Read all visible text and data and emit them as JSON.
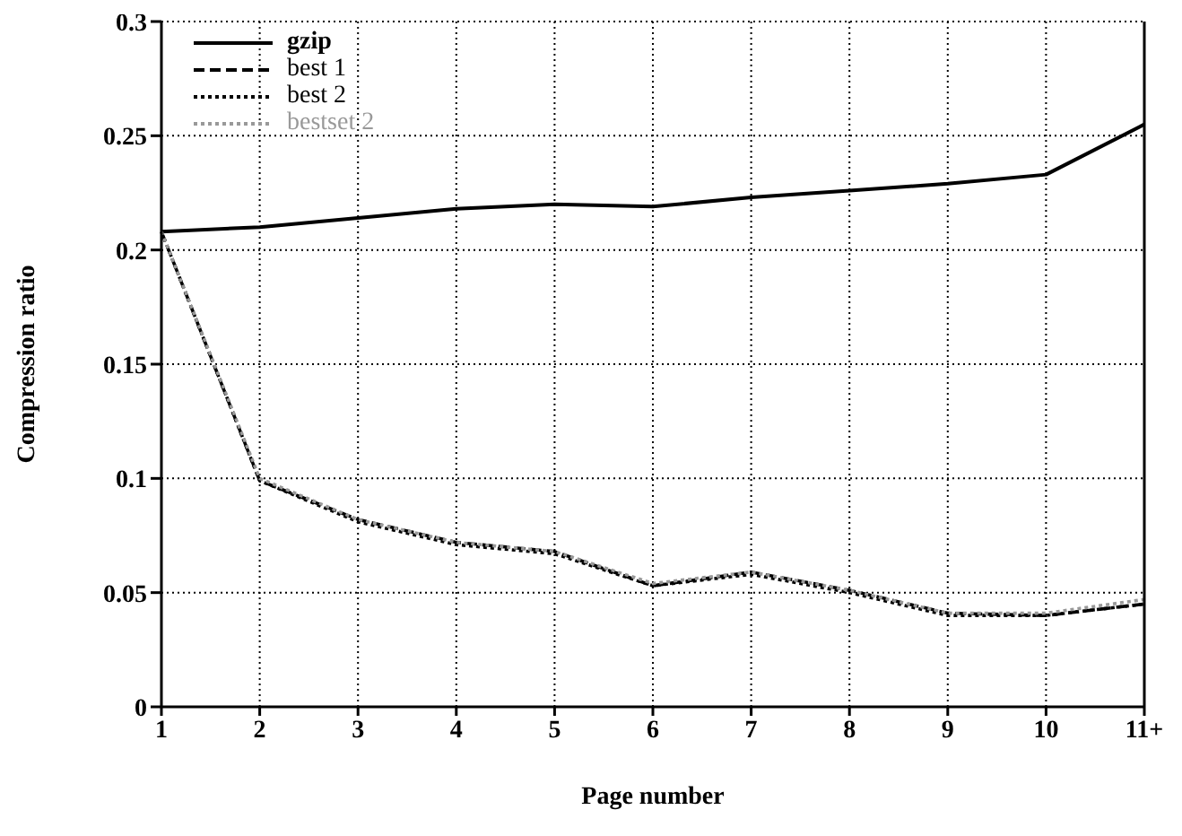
{
  "chart_data": {
    "type": "line",
    "xlabel": "Page number",
    "ylabel": "Compression ratio",
    "categories": [
      "1",
      "2",
      "3",
      "4",
      "5",
      "6",
      "7",
      "8",
      "9",
      "10",
      "11+"
    ],
    "series": [
      {
        "name": "gzip",
        "color": "#000000",
        "line_style": "solid",
        "values": [
          0.208,
          0.21,
          0.214,
          0.218,
          0.22,
          0.219,
          0.223,
          0.226,
          0.229,
          0.233,
          0.255
        ]
      },
      {
        "name": "best 1",
        "color": "#000000",
        "line_style": "dashed",
        "values": [
          0.208,
          0.099,
          0.082,
          0.072,
          0.068,
          0.053,
          0.059,
          0.051,
          0.041,
          0.04,
          0.045
        ]
      },
      {
        "name": "best 2",
        "color": "#000000",
        "line_style": "dotted",
        "values": [
          0.208,
          0.099,
          0.081,
          0.071,
          0.067,
          0.053,
          0.058,
          0.05,
          0.04,
          0.04,
          0.045
        ]
      },
      {
        "name": "bestset 2",
        "color": "#999999",
        "line_style": "dotted",
        "values": [
          0.208,
          0.1,
          0.082,
          0.072,
          0.068,
          0.054,
          0.059,
          0.051,
          0.041,
          0.041,
          0.047
        ]
      }
    ],
    "ylim": [
      0,
      0.3
    ],
    "yticks": [
      0,
      0.05,
      0.1,
      0.15,
      0.2,
      0.25,
      0.3
    ],
    "grid": true,
    "legend": "top left",
    "marker": "none"
  }
}
